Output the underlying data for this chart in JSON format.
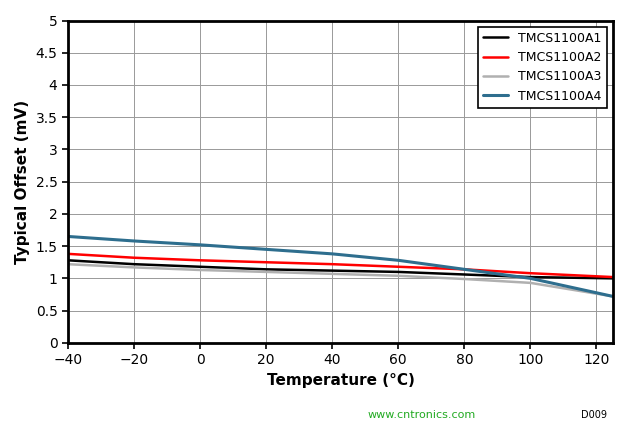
{
  "title": "",
  "xlabel": "Temperature (°C)",
  "ylabel": "Typical Offset (mV)",
  "xlim": [
    -40,
    125
  ],
  "ylim": [
    0,
    5
  ],
  "xticks": [
    -40,
    -20,
    0,
    20,
    40,
    60,
    80,
    100,
    120
  ],
  "ytick_values": [
    0,
    0.5,
    1.0,
    1.5,
    2.0,
    2.5,
    3.0,
    3.5,
    4.0,
    4.5,
    5.0
  ],
  "ytick_labels": [
    "0",
    "0.5",
    "1",
    "1.5",
    "2",
    "2.5",
    "3",
    "3.5",
    "4",
    "4.5",
    "5"
  ],
  "series": [
    {
      "label": "TMCS1100A1",
      "color": "#000000",
      "linewidth": 1.8,
      "x": [
        -40,
        -20,
        0,
        20,
        40,
        60,
        80,
        100,
        125
      ],
      "y": [
        1.28,
        1.22,
        1.18,
        1.14,
        1.12,
        1.1,
        1.06,
        1.02,
        1.0
      ]
    },
    {
      "label": "TMCS1100A2",
      "color": "#ff0000",
      "linewidth": 1.8,
      "x": [
        -40,
        -20,
        0,
        20,
        40,
        60,
        80,
        100,
        125
      ],
      "y": [
        1.38,
        1.32,
        1.28,
        1.25,
        1.22,
        1.18,
        1.14,
        1.08,
        1.02
      ]
    },
    {
      "label": "TMCS1100A3",
      "color": "#b0b0b0",
      "linewidth": 1.8,
      "x": [
        -40,
        -20,
        0,
        20,
        40,
        60,
        80,
        100,
        125
      ],
      "y": [
        1.22,
        1.17,
        1.13,
        1.1,
        1.07,
        1.04,
        0.99,
        0.93,
        0.72
      ]
    },
    {
      "label": "TMCS1100A4",
      "color": "#2e6e8e",
      "linewidth": 2.2,
      "x": [
        -40,
        -20,
        0,
        20,
        40,
        60,
        80,
        100,
        125
      ],
      "y": [
        1.65,
        1.58,
        1.52,
        1.45,
        1.38,
        1.28,
        1.14,
        1.0,
        0.72
      ]
    }
  ],
  "legend_loc": "upper right",
  "grid_color": "#999999",
  "grid_linewidth": 0.7,
  "background_color": "#ffffff",
  "spine_linewidth": 2.0,
  "watermark_text": "www.cntronics.com",
  "watermark_color": "#22aa22",
  "corner_text": "D009",
  "xlabel_fontsize": 11,
  "ylabel_fontsize": 11,
  "tick_labelsize": 10,
  "legend_fontsize": 9
}
